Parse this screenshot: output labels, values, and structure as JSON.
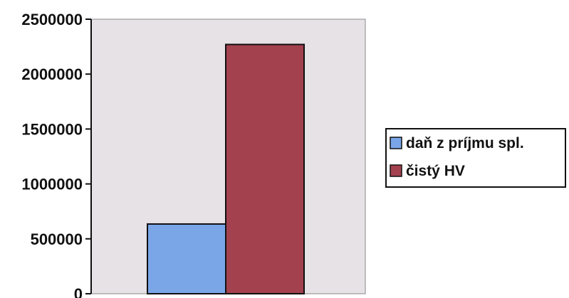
{
  "chart_data": {
    "type": "bar",
    "categories": [
      ""
    ],
    "series": [
      {
        "name": "daň z príjmu spl.",
        "values": [
          635000
        ],
        "color": "#7aa6e8"
      },
      {
        "name": "čistý HV",
        "values": [
          2270000
        ],
        "color": "#a3414f"
      }
    ],
    "title": "",
    "xlabel": "",
    "ylabel": "",
    "ylim": [
      0,
      2500000
    ],
    "yticks": [
      "0",
      "500000",
      "1000000",
      "1500000",
      "2000000",
      "2500000"
    ],
    "grid": false,
    "legend_position": "right",
    "plot_background": "#e7e2e6"
  }
}
